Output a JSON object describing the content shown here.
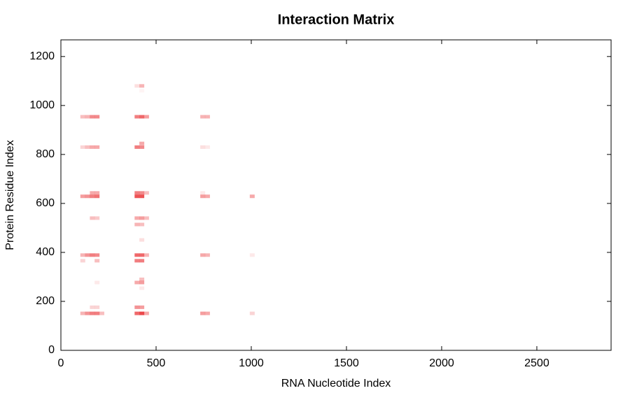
{
  "chart_data": {
    "type": "heatmap",
    "title": "Interaction Matrix",
    "x_label": "RNA Nucleotide Index",
    "y_label": "Protein Residue Index",
    "color": "#e8282b",
    "xlim": [
      0,
      2890
    ],
    "ylim": [
      0,
      1268
    ],
    "xticks": [
      0,
      500,
      1000,
      1500,
      2000,
      2500
    ],
    "yticks": [
      0,
      200,
      400,
      600,
      800,
      1000,
      1200
    ],
    "x": [
      115,
      140,
      165,
      190,
      215,
      400,
      425,
      450,
      745,
      770,
      1005,
      165,
      190,
      400,
      425,
      425,
      190,
      400,
      425,
      425,
      115,
      190,
      400,
      425,
      115,
      140,
      165,
      190,
      400,
      425,
      450,
      745,
      770,
      1005,
      425,
      400,
      425,
      165,
      190,
      400,
      425,
      450,
      115,
      140,
      165,
      190,
      400,
      425,
      745,
      770,
      1005,
      165,
      190,
      400,
      425,
      450,
      745,
      115,
      140,
      165,
      190,
      400,
      425,
      745,
      770,
      425,
      115,
      140,
      165,
      190,
      400,
      425,
      450,
      745,
      770,
      400,
      425,
      425
    ],
    "y": [
      151,
      151,
      151,
      151,
      151,
      151,
      151,
      151,
      151,
      151,
      151,
      176,
      176,
      176,
      176,
      254,
      277,
      277,
      277,
      290,
      366,
      366,
      366,
      366,
      389,
      389,
      389,
      389,
      389,
      389,
      389,
      389,
      389,
      389,
      451,
      514,
      514,
      540,
      540,
      540,
      540,
      540,
      629,
      629,
      629,
      629,
      629,
      629,
      629,
      629,
      629,
      643,
      643,
      643,
      643,
      643,
      643,
      830,
      830,
      830,
      830,
      830,
      830,
      830,
      830,
      845,
      954,
      954,
      954,
      954,
      954,
      954,
      954,
      954,
      954,
      1080,
      1080,
      1060
    ],
    "values": [
      0.35,
      0.5,
      0.6,
      0.6,
      0.3,
      0.7,
      0.85,
      0.4,
      0.45,
      0.4,
      0.2,
      0.2,
      0.2,
      0.5,
      0.45,
      0.1,
      0.1,
      0.4,
      0.45,
      0.3,
      0.2,
      0.3,
      0.6,
      0.6,
      0.35,
      0.5,
      0.6,
      0.55,
      0.7,
      0.7,
      0.35,
      0.4,
      0.35,
      0.1,
      0.15,
      0.35,
      0.3,
      0.3,
      0.25,
      0.4,
      0.45,
      0.3,
      0.45,
      0.5,
      0.6,
      0.65,
      0.8,
      0.8,
      0.45,
      0.4,
      0.4,
      0.4,
      0.4,
      0.6,
      0.55,
      0.3,
      0.1,
      0.2,
      0.3,
      0.4,
      0.4,
      0.6,
      0.55,
      0.15,
      0.1,
      0.4,
      0.3,
      0.35,
      0.55,
      0.55,
      0.6,
      0.7,
      0.45,
      0.35,
      0.35,
      0.15,
      0.35,
      0.05
    ]
  }
}
